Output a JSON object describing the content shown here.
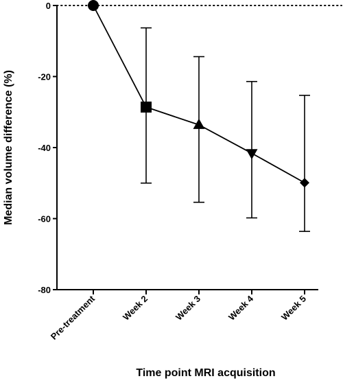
{
  "chart_data": {
    "type": "line",
    "title": "",
    "xlabel": "Time point MRI acquisition",
    "ylabel": "Median volume difference (%)",
    "categories": [
      "Pre-treatment",
      "Week 2",
      "Week 3",
      "Week 4",
      "Week 5"
    ],
    "ylim": [
      -80,
      0
    ],
    "yticks": [
      0,
      -20,
      -40,
      -60,
      -80
    ],
    "series": [
      {
        "markers": [
          "circle",
          "square",
          "triangle-up",
          "triangle-down",
          "diamond"
        ],
        "values": [
          0,
          -28.6,
          -33.6,
          -41.6,
          -49.9
        ],
        "error_upper": [
          0,
          -6.3,
          -14.4,
          -21.4,
          -25.3
        ],
        "error_lower": [
          0,
          -50.0,
          -55.4,
          -59.8,
          -63.6
        ]
      }
    ],
    "reference_line": {
      "y": 0,
      "style": "dotted"
    },
    "colors": {
      "line": "#000000",
      "marker": "#000000",
      "axis": "#000000"
    }
  }
}
